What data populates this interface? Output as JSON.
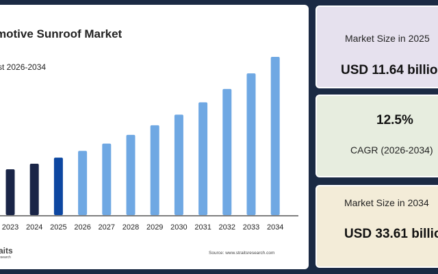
{
  "chart_data": {
    "type": "bar",
    "title": "motive Sunroof Market",
    "subtitle": "st 2026-2034",
    "categories": [
      "2023",
      "2024",
      "2025",
      "2026",
      "2027",
      "2028",
      "2029",
      "2030",
      "2031",
      "2032",
      "2033",
      "2034"
    ],
    "values": [
      9.1,
      10.3,
      11.64,
      13.1,
      14.7,
      16.6,
      18.7,
      21.0,
      23.7,
      26.6,
      30.0,
      33.61
    ],
    "ylim": [
      0,
      36
    ],
    "grid": false,
    "colors": {
      "historical": "#1a2547",
      "base_year": "#0d47a1",
      "forecast": "#6fa8e3"
    },
    "source": "Source: www.straitsresearch.com"
  },
  "logo": {
    "main": "aits",
    "sub": "esearch"
  },
  "cards": [
    {
      "label": "Market Size in 2025",
      "value": "USD 11.64 billio"
    },
    {
      "label": "CAGR (2026-2034)",
      "value": "12.5%"
    },
    {
      "label": "Market Size in 2034",
      "value": "USD 33.61 billio"
    }
  ]
}
